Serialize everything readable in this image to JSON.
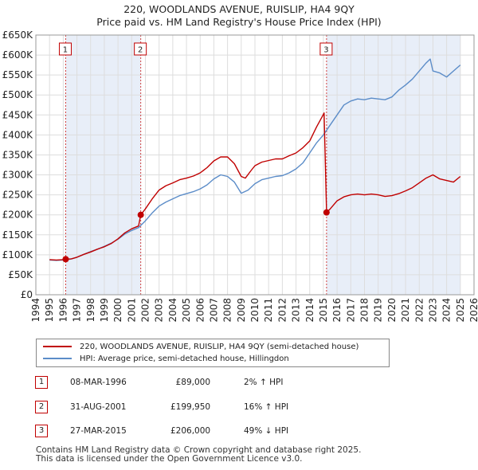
{
  "title_line1": "220, WOODLANDS AVENUE, RUISLIP, HA4 9QY",
  "title_line2": "Price paid vs. HM Land Registry's House Price Index (HPI)",
  "colors": {
    "property": "#c00000",
    "hpi": "#5b8cc8",
    "shade": "#e8eef8",
    "marker_border": "#c00000"
  },
  "legend": {
    "property_label": "220, WOODLANDS AVENUE, RUISLIP, HA4 9QY (semi-detached house)",
    "hpi_label": "HPI: Average price, semi-detached house, Hillingdon"
  },
  "sales": [
    {
      "num": "1",
      "date": "08-MAR-1996",
      "price": "£89,000",
      "hpi": "2% ↑ HPI"
    },
    {
      "num": "2",
      "date": "31-AUG-2001",
      "price": "£199,950",
      "hpi": "16% ↑ HPI"
    },
    {
      "num": "3",
      "date": "27-MAR-2015",
      "price": "£206,000",
      "hpi": "49% ↓ HPI"
    }
  ],
  "footer": {
    "line1": "Contains HM Land Registry data © Crown copyright and database right 2025.",
    "line2": "This data is licensed under the Open Government Licence v3.0."
  },
  "chart_data": {
    "type": "line",
    "xlim": [
      1994,
      2026
    ],
    "ylim": [
      0,
      650000
    ],
    "x_ticks": [
      "1994",
      "1995",
      "1996",
      "1997",
      "1998",
      "1999",
      "2000",
      "2001",
      "2002",
      "2003",
      "2004",
      "2005",
      "2006",
      "2007",
      "2008",
      "2009",
      "2010",
      "2011",
      "2012",
      "2013",
      "2014",
      "2015",
      "2016",
      "2017",
      "2018",
      "2019",
      "2020",
      "2021",
      "2022",
      "2023",
      "2024",
      "2025",
      "2026"
    ],
    "y_ticks": [
      {
        "value": 0,
        "label": "£0"
      },
      {
        "value": 50000,
        "label": "£50K"
      },
      {
        "value": 100000,
        "label": "£100K"
      },
      {
        "value": 150000,
        "label": "£150K"
      },
      {
        "value": 200000,
        "label": "£200K"
      },
      {
        "value": 250000,
        "label": "£250K"
      },
      {
        "value": 300000,
        "label": "£300K"
      },
      {
        "value": 350000,
        "label": "£350K"
      },
      {
        "value": 400000,
        "label": "£400K"
      },
      {
        "value": 450000,
        "label": "£450K"
      },
      {
        "value": 500000,
        "label": "£500K"
      },
      {
        "value": 550000,
        "label": "£550K"
      },
      {
        "value": 600000,
        "label": "£600K"
      },
      {
        "value": 650000,
        "label": "£650K"
      }
    ],
    "shaded_ranges": [
      [
        1996.18,
        2001.66
      ],
      [
        2015.23,
        2025.0
      ]
    ],
    "sale_markers": [
      {
        "label": "1",
        "x": 1996.18,
        "y": 89000
      },
      {
        "label": "2",
        "x": 2001.66,
        "y": 199950
      },
      {
        "label": "3",
        "x": 2015.23,
        "y": 206000
      }
    ],
    "series": [
      {
        "name": "220, WOODLANDS AVENUE, RUISLIP, HA4 9QY (semi-detached house)",
        "points": [
          [
            1995.0,
            88000
          ],
          [
            1995.5,
            87000
          ],
          [
            1996.0,
            88000
          ],
          [
            1996.18,
            89000
          ],
          [
            1996.6,
            90000
          ],
          [
            1997.0,
            94000
          ],
          [
            1997.5,
            101000
          ],
          [
            1998.0,
            107000
          ],
          [
            1998.5,
            114000
          ],
          [
            1999.0,
            120000
          ],
          [
            1999.5,
            128000
          ],
          [
            2000.0,
            140000
          ],
          [
            2000.5,
            155000
          ],
          [
            2001.0,
            165000
          ],
          [
            2001.5,
            172000
          ],
          [
            2001.66,
            199950
          ],
          [
            2002.0,
            215000
          ],
          [
            2002.5,
            240000
          ],
          [
            2003.0,
            262000
          ],
          [
            2003.5,
            273000
          ],
          [
            2004.0,
            280000
          ],
          [
            2004.5,
            288000
          ],
          [
            2005.0,
            292000
          ],
          [
            2005.5,
            297000
          ],
          [
            2006.0,
            305000
          ],
          [
            2006.5,
            318000
          ],
          [
            2007.0,
            335000
          ],
          [
            2007.5,
            345000
          ],
          [
            2008.0,
            345000
          ],
          [
            2008.5,
            328000
          ],
          [
            2009.0,
            296000
          ],
          [
            2009.3,
            292000
          ],
          [
            2009.7,
            310000
          ],
          [
            2010.0,
            323000
          ],
          [
            2010.5,
            332000
          ],
          [
            2011.0,
            336000
          ],
          [
            2011.5,
            340000
          ],
          [
            2012.0,
            340000
          ],
          [
            2012.5,
            348000
          ],
          [
            2013.0,
            355000
          ],
          [
            2013.5,
            368000
          ],
          [
            2014.0,
            385000
          ],
          [
            2014.5,
            420000
          ],
          [
            2014.9,
            445000
          ],
          [
            2015.05,
            455000
          ],
          [
            2015.15,
            320000
          ],
          [
            2015.23,
            206000
          ],
          [
            2015.5,
            215000
          ],
          [
            2016.0,
            235000
          ],
          [
            2016.5,
            245000
          ],
          [
            2017.0,
            250000
          ],
          [
            2017.5,
            252000
          ],
          [
            2018.0,
            250000
          ],
          [
            2018.5,
            252000
          ],
          [
            2019.0,
            250000
          ],
          [
            2019.5,
            246000
          ],
          [
            2020.0,
            248000
          ],
          [
            2020.5,
            253000
          ],
          [
            2021.0,
            260000
          ],
          [
            2021.5,
            268000
          ],
          [
            2022.0,
            280000
          ],
          [
            2022.5,
            292000
          ],
          [
            2023.0,
            300000
          ],
          [
            2023.5,
            290000
          ],
          [
            2024.0,
            286000
          ],
          [
            2024.5,
            282000
          ],
          [
            2025.0,
            296000
          ]
        ]
      },
      {
        "name": "HPI: Average price, semi-detached house, Hillingdon",
        "points": [
          [
            1995.0,
            87000
          ],
          [
            1995.5,
            86000
          ],
          [
            1996.0,
            87000
          ],
          [
            1996.5,
            89000
          ],
          [
            1997.0,
            94000
          ],
          [
            1997.5,
            101000
          ],
          [
            1998.0,
            108000
          ],
          [
            1998.5,
            114000
          ],
          [
            1999.0,
            121000
          ],
          [
            1999.5,
            129000
          ],
          [
            2000.0,
            139000
          ],
          [
            2000.5,
            152000
          ],
          [
            2001.0,
            161000
          ],
          [
            2001.5,
            168000
          ],
          [
            2002.0,
            185000
          ],
          [
            2002.5,
            205000
          ],
          [
            2003.0,
            222000
          ],
          [
            2003.5,
            232000
          ],
          [
            2004.0,
            240000
          ],
          [
            2004.5,
            248000
          ],
          [
            2005.0,
            253000
          ],
          [
            2005.5,
            258000
          ],
          [
            2006.0,
            265000
          ],
          [
            2006.5,
            275000
          ],
          [
            2007.0,
            290000
          ],
          [
            2007.5,
            300000
          ],
          [
            2008.0,
            296000
          ],
          [
            2008.5,
            282000
          ],
          [
            2009.0,
            254000
          ],
          [
            2009.5,
            262000
          ],
          [
            2010.0,
            278000
          ],
          [
            2010.5,
            288000
          ],
          [
            2011.0,
            292000
          ],
          [
            2011.5,
            296000
          ],
          [
            2012.0,
            298000
          ],
          [
            2012.5,
            305000
          ],
          [
            2013.0,
            315000
          ],
          [
            2013.5,
            330000
          ],
          [
            2014.0,
            355000
          ],
          [
            2014.5,
            380000
          ],
          [
            2015.0,
            400000
          ],
          [
            2015.5,
            425000
          ],
          [
            2016.0,
            450000
          ],
          [
            2016.5,
            475000
          ],
          [
            2017.0,
            485000
          ],
          [
            2017.5,
            490000
          ],
          [
            2018.0,
            488000
          ],
          [
            2018.5,
            492000
          ],
          [
            2019.0,
            490000
          ],
          [
            2019.5,
            488000
          ],
          [
            2020.0,
            495000
          ],
          [
            2020.5,
            512000
          ],
          [
            2021.0,
            525000
          ],
          [
            2021.5,
            540000
          ],
          [
            2022.0,
            560000
          ],
          [
            2022.5,
            580000
          ],
          [
            2022.8,
            590000
          ],
          [
            2023.0,
            560000
          ],
          [
            2023.5,
            555000
          ],
          [
            2024.0,
            545000
          ],
          [
            2024.5,
            560000
          ],
          [
            2025.0,
            575000
          ]
        ]
      }
    ]
  }
}
